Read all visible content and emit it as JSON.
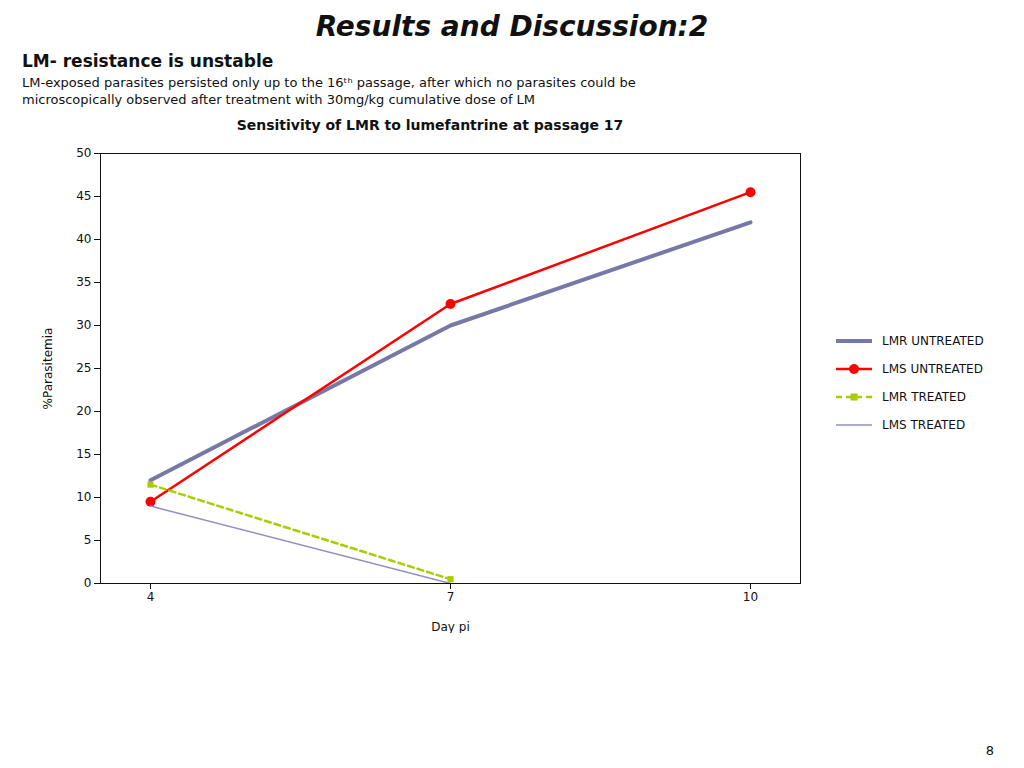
{
  "title": "Results and Discussion:2",
  "subtitle": "LM- resistance is unstable",
  "annotations": [
    "LM-exposed parasites persisted only up to the 16ᵗʰ passage, after which no parasites could be",
    "microscopically observed after treatment with 30mg/kg cumulative dose of LM",
    "8"
  ],
  "chart_data": {
    "type": "line",
    "title": "Sensitivity of LMR to lumefantrine at passage 17",
    "x_label": "Day pi",
    "y_label": "%Parasitemia",
    "x": [
      4,
      7,
      10
    ],
    "xlim": [
      3.5,
      10.5
    ],
    "xticks": [
      4,
      7,
      10
    ],
    "ylim": [
      0,
      50
    ],
    "yticks": [
      0,
      5,
      10,
      15,
      20,
      25,
      30,
      35,
      40,
      45,
      50
    ],
    "grid": false,
    "legend": "right",
    "series": [
      {
        "name": "LMR UNTREATED",
        "color": "#7878a8",
        "line_style": "solid",
        "values": [
          12,
          30,
          42
        ]
      },
      {
        "name": "LMS UNTREATED",
        "color": "#FF0000",
        "line_style": "solid",
        "marker": "circle",
        "values": [
          9.5,
          32.5,
          45.5
        ]
      },
      {
        "name": "LMR TREATED",
        "color": "#aacc00",
        "line_style": "dashed",
        "marker": "square",
        "values": [
          11.5,
          0.5,
          null
        ]
      },
      {
        "name": "LMS TREATED",
        "color": "#9090c0",
        "line_style": "solid",
        "values": [
          9,
          0,
          null
        ]
      }
    ]
  }
}
